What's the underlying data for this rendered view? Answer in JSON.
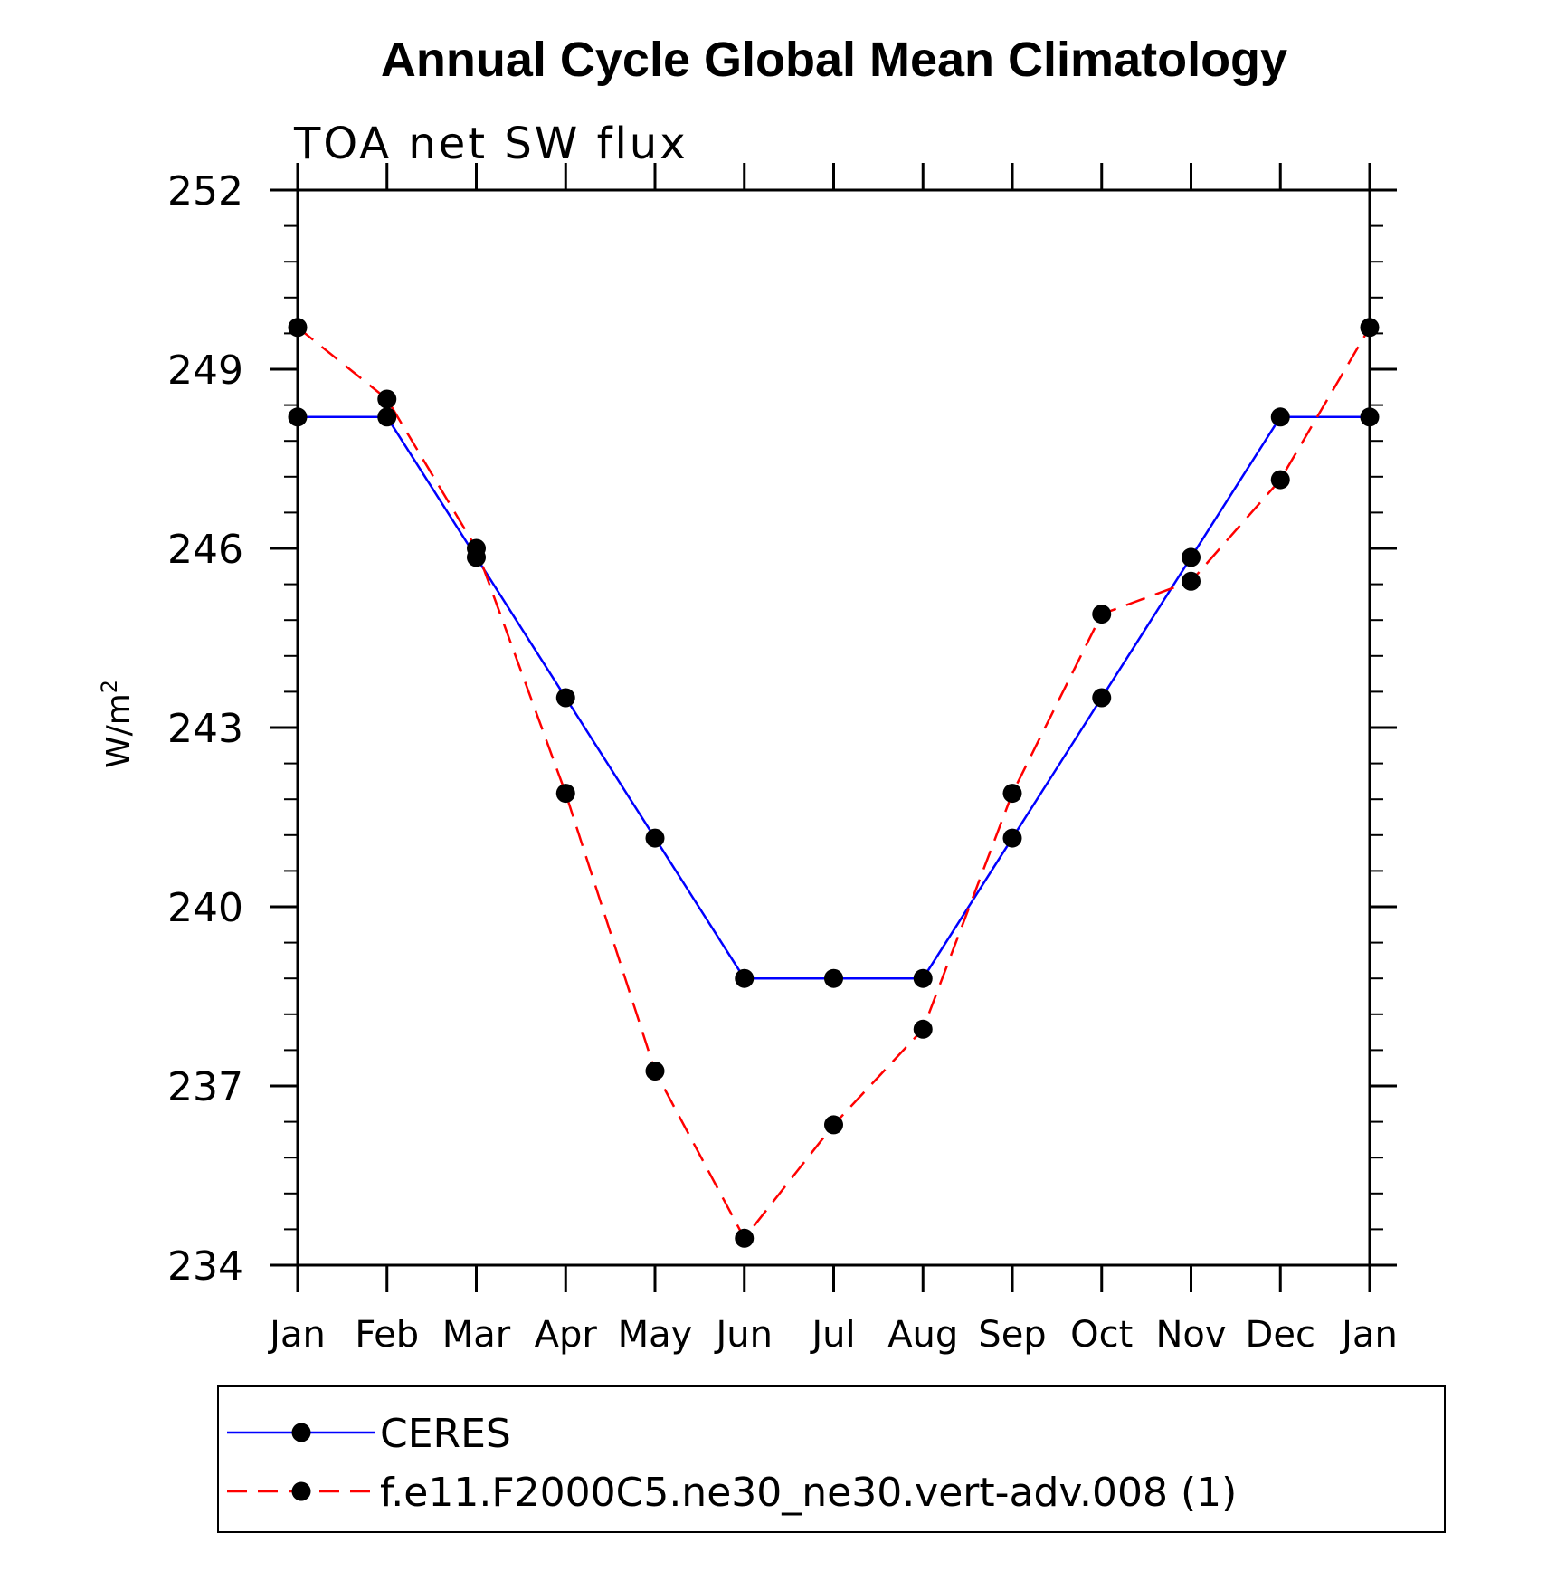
{
  "chart_data": {
    "type": "line",
    "title": "Annual Cycle Global Mean Climatology",
    "subtitle": "TOA net SW flux",
    "xlabel": "",
    "ylabel": "W/m",
    "ylabel_superscript": "2",
    "categories": [
      "Jan",
      "Feb",
      "Mar",
      "Apr",
      "May",
      "Jun",
      "Jul",
      "Aug",
      "Sep",
      "Oct",
      "Nov",
      "Dec",
      "Jan"
    ],
    "ylim": [
      234,
      252
    ],
    "yticks": [
      234,
      237,
      240,
      243,
      246,
      249,
      252
    ],
    "series": [
      {
        "name": "CERES",
        "color": "#0000ff",
        "style": "solid",
        "marker": "filled-circle",
        "values": [
          248.2,
          248.2,
          245.85,
          243.5,
          241.15,
          238.8,
          238.8,
          238.8,
          241.15,
          243.5,
          245.85,
          248.2,
          248.2
        ]
      },
      {
        "name": "f.e11.F2000C5.ne30_ne30.vert-adv.008 (1)",
        "color": "#ff0000",
        "style": "dashed",
        "marker": "filled-circle",
        "values": [
          249.7,
          248.5,
          246.0,
          241.9,
          237.25,
          234.45,
          236.35,
          237.95,
          241.9,
          244.9,
          245.45,
          247.15,
          249.7
        ]
      }
    ],
    "grid": false,
    "legend_position": "bottom"
  }
}
